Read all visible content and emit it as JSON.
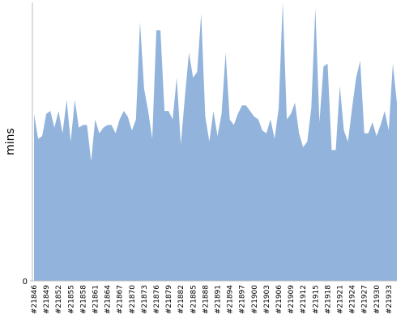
{
  "chart_data": {
    "type": "area",
    "y_label": "mins",
    "categories": [
      "#21846",
      null,
      null,
      "#21849",
      null,
      null,
      "#21852",
      null,
      null,
      "#21855",
      null,
      null,
      "#21858",
      null,
      null,
      "#21861",
      null,
      null,
      "#21864",
      null,
      null,
      "#21867",
      null,
      null,
      "#21870",
      null,
      null,
      "#21873",
      null,
      null,
      "#21876",
      null,
      null,
      "#21879",
      null,
      null,
      "#21882",
      null,
      null,
      "#21885",
      null,
      null,
      "#21888",
      null,
      null,
      "#21891",
      null,
      null,
      "#21894",
      null,
      null,
      "#21897",
      null,
      null,
      "#21900",
      null,
      null,
      "#21903",
      null,
      null,
      "#21906",
      null,
      null,
      "#21909",
      null,
      null,
      "#21912",
      null,
      null,
      "#21915",
      null,
      null,
      "#21918",
      null,
      null,
      "#21921",
      null,
      null,
      "#21924",
      null,
      null,
      "#21927",
      null,
      null,
      "#21930",
      null,
      null,
      "#21933",
      null,
      null
    ],
    "values": [
      60,
      51,
      52,
      60,
      61,
      55,
      61,
      53,
      65,
      50,
      65,
      55,
      56,
      56,
      43,
      58,
      53,
      55,
      56,
      56,
      53,
      58,
      61,
      59,
      54,
      58,
      93,
      69,
      61,
      51,
      90,
      90,
      61,
      61,
      58,
      73,
      49,
      66,
      82,
      73,
      75,
      96,
      59,
      50,
      61,
      52,
      60,
      82,
      58,
      56,
      60,
      63,
      63,
      61,
      59,
      58,
      54,
      53,
      58,
      51,
      62,
      100,
      58,
      60,
      64,
      53,
      48,
      50,
      62,
      98,
      57,
      77,
      78,
      47,
      47,
      70,
      54,
      50,
      62,
      73,
      79,
      53,
      53,
      57,
      52,
      56,
      61,
      54,
      78,
      64
    ],
    "color": "#92b4dc",
    "ylim": [
      0,
      100
    ],
    "yticks": [
      0
    ]
  }
}
